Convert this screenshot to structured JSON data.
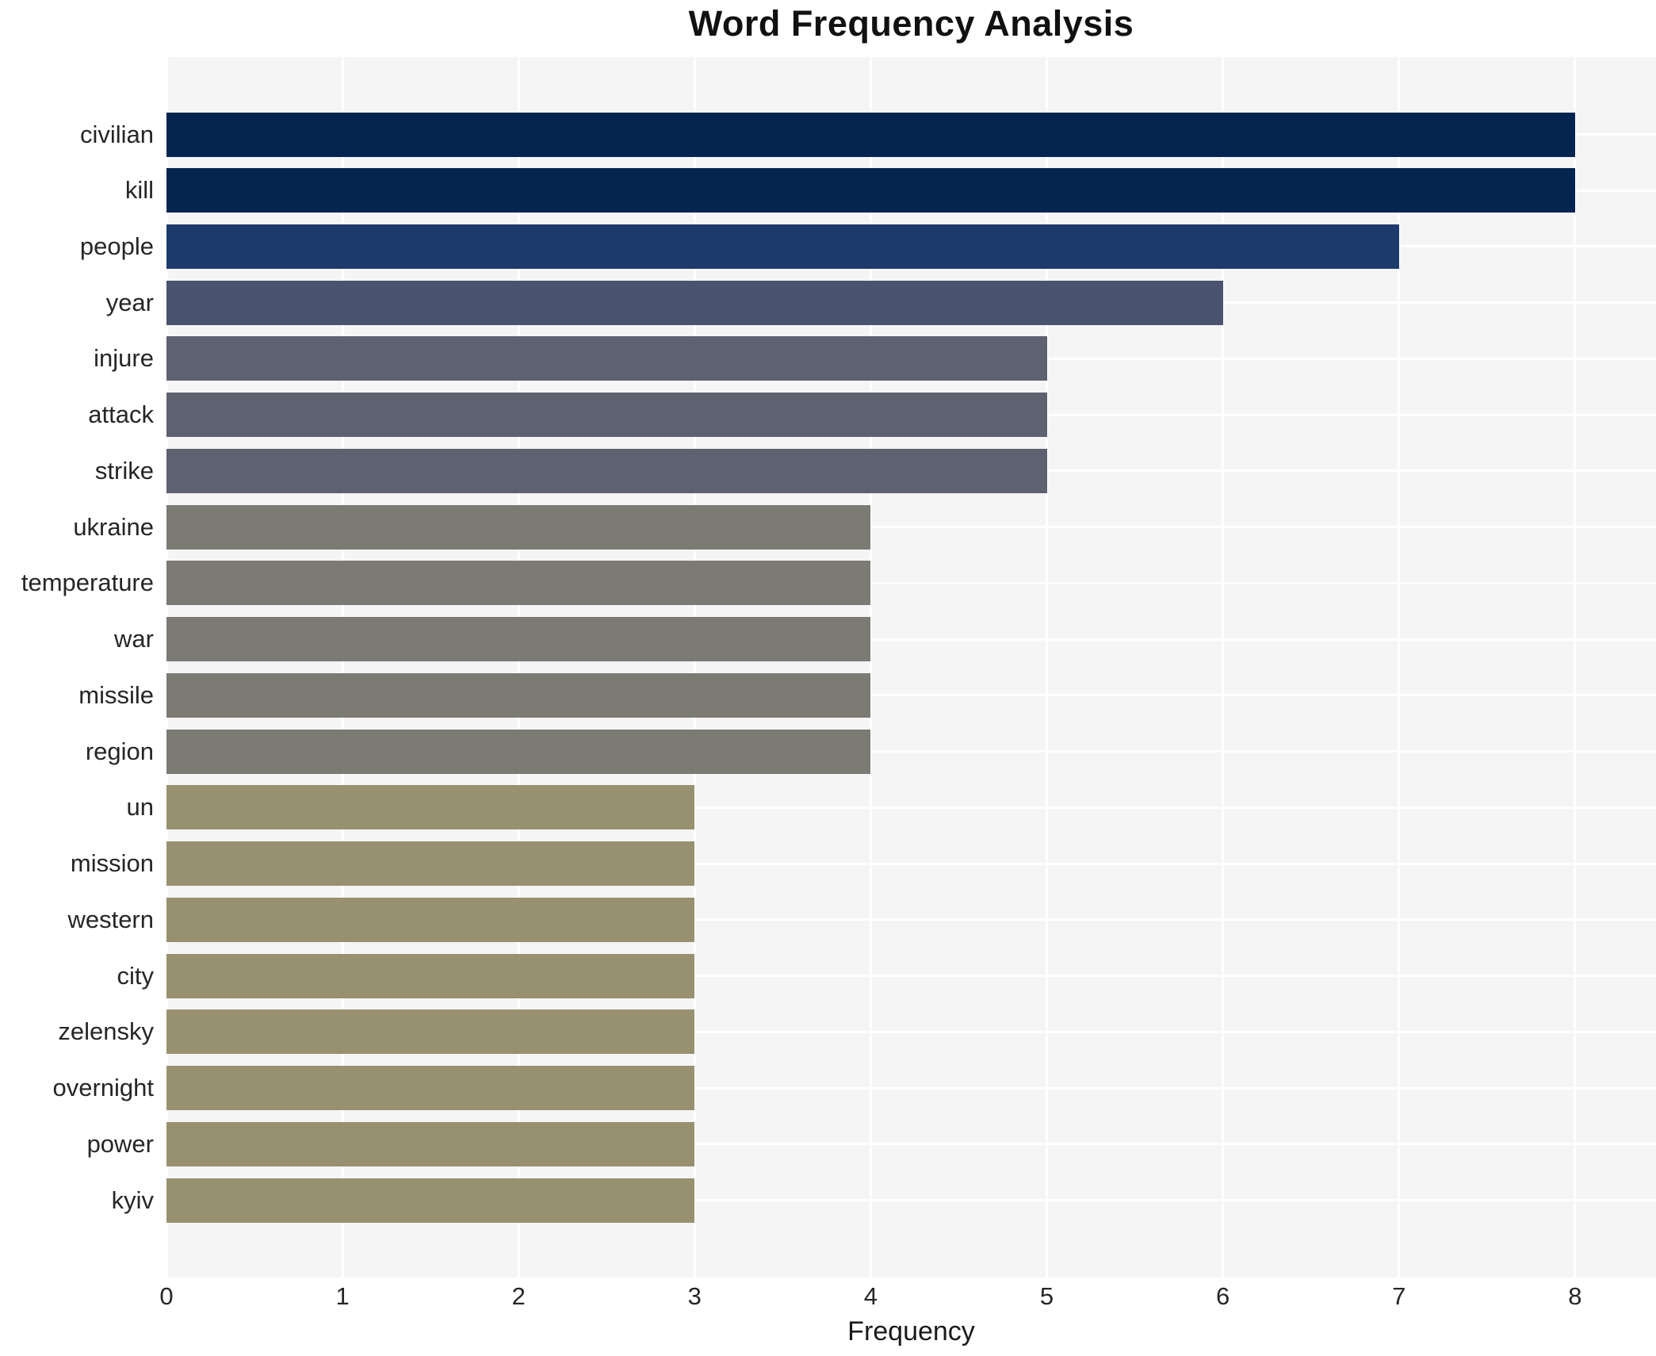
{
  "chart_data": {
    "type": "bar",
    "orientation": "horizontal",
    "title": "Word Frequency Analysis",
    "xlabel": "Frequency",
    "ylabel": "",
    "categories": [
      "civilian",
      "kill",
      "people",
      "year",
      "injure",
      "attack",
      "strike",
      "ukraine",
      "temperature",
      "war",
      "missile",
      "region",
      "un",
      "mission",
      "western",
      "city",
      "zelensky",
      "overnight",
      "power",
      "kyiv"
    ],
    "values": [
      8,
      8,
      7,
      6,
      5,
      5,
      5,
      4,
      4,
      4,
      4,
      4,
      3,
      3,
      3,
      3,
      3,
      3,
      3,
      3
    ],
    "bar_colors": [
      "#03254f",
      "#03254f",
      "#1d3a6d",
      "#49526e",
      "#5d6170",
      "#5d6170",
      "#5d6170",
      "#7b7a73",
      "#7b7a73",
      "#7b7a73",
      "#7b7a73",
      "#7b7a73",
      "#989170",
      "#989170",
      "#989170",
      "#989170",
      "#989170",
      "#989170",
      "#989170",
      "#989170"
    ],
    "xticks": [
      0,
      1,
      2,
      3,
      4,
      5,
      6,
      7,
      8
    ],
    "xlim": [
      0,
      8.46
    ],
    "grid": true,
    "legend": false,
    "plot_background": "#f5f5f6",
    "grid_color": "#ffffff",
    "figure_background": "#ffffff"
  }
}
